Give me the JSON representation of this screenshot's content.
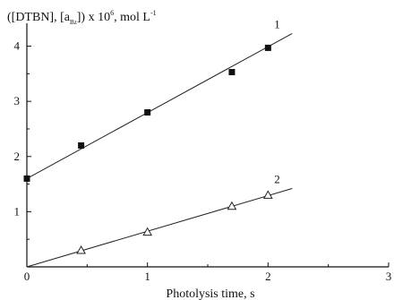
{
  "chart_data": {
    "type": "scatter",
    "title": "",
    "xlabel": "Photolysis time, s",
    "ylabel": "([DTBN], [aʙz]) x 10⁶, mol L⁻¹",
    "ylabel_parts": {
      "pre": "([DTBN], [a",
      "sub": "Bz",
      "mid": "]) x 10",
      "sup1": "6",
      "post": ", mol L",
      "sup2": "-1"
    },
    "xlim": [
      0,
      3
    ],
    "ylim": [
      0,
      4.35
    ],
    "xticks": [
      0,
      1,
      2,
      3
    ],
    "xtick_labels": [
      "0",
      "1",
      "2",
      "3"
    ],
    "yticks": [
      1,
      2,
      3,
      4
    ],
    "ytick_labels": [
      "1",
      "2",
      "3",
      "4"
    ],
    "grid": false,
    "legend": "none",
    "series": [
      {
        "name": "1",
        "marker": "filled-square",
        "x": [
          0,
          0.45,
          1.0,
          1.7,
          2.0
        ],
        "y": [
          1.6,
          2.2,
          2.8,
          3.53,
          3.97
        ],
        "fit": {
          "x": [
            0,
            2.2
          ],
          "y": [
            1.6,
            4.23
          ]
        }
      },
      {
        "name": "2",
        "marker": "open-triangle",
        "x": [
          0.45,
          1.0,
          1.7,
          2.0
        ],
        "y": [
          0.3,
          0.63,
          1.1,
          1.3
        ],
        "fit": {
          "x": [
            0,
            2.2
          ],
          "y": [
            0.0,
            1.42
          ]
        }
      }
    ]
  }
}
